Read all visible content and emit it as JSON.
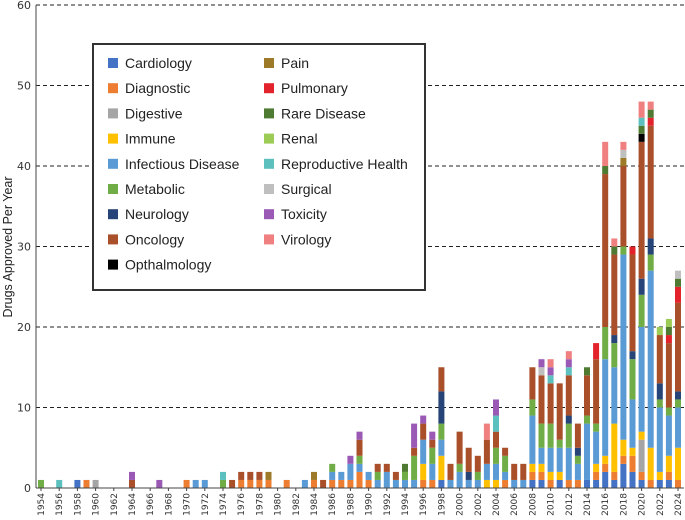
{
  "chart_data": {
    "type": "bar",
    "stacked": true,
    "title": "",
    "xlabel": "",
    "ylabel": "Drugs Approved Per Year",
    "ylim": [
      0,
      60
    ],
    "yticks": [
      0,
      10,
      20,
      30,
      40,
      50,
      60
    ],
    "grid": "horizontal dashed",
    "legend_position": "top-left",
    "x_tick_labels": [
      "1954",
      "1956",
      "1958",
      "1960",
      "1962",
      "1964",
      "1966",
      "1968",
      "1970",
      "1972",
      "1974",
      "1976",
      "1978",
      "1980",
      "1982",
      "1984",
      "1986",
      "1988",
      "1990",
      "1992",
      "1994",
      "1996",
      "1998",
      "2000",
      "2002",
      "2004",
      "2006",
      "2008",
      "2010",
      "2012",
      "2014",
      "2016",
      "2018",
      "2020",
      "2022",
      "2024"
    ],
    "categories": [
      "1954",
      "1955",
      "1956",
      "1957",
      "1958",
      "1959",
      "1960",
      "1961",
      "1962",
      "1963",
      "1964",
      "1965",
      "1966",
      "1967",
      "1968",
      "1969",
      "1970",
      "1971",
      "1972",
      "1973",
      "1974",
      "1975",
      "1976",
      "1977",
      "1978",
      "1979",
      "1980",
      "1981",
      "1982",
      "1983",
      "1984",
      "1985",
      "1986",
      "1987",
      "1988",
      "1989",
      "1990",
      "1991",
      "1992",
      "1993",
      "1994",
      "1995",
      "1996",
      "1997",
      "1998",
      "1999",
      "2000",
      "2001",
      "2002",
      "2003",
      "2004",
      "2005",
      "2006",
      "2007",
      "2008",
      "2009",
      "2010",
      "2011",
      "2012",
      "2013",
      "2014",
      "2015",
      "2016",
      "2017",
      "2018",
      "2019",
      "2020",
      "2021",
      "2022",
      "2023",
      "2024"
    ],
    "series": [
      {
        "name": "Cardiology",
        "color": "#4472c4",
        "values": [
          0,
          0,
          0,
          0,
          1,
          0,
          0,
          0,
          0,
          0,
          0,
          0,
          0,
          0,
          0,
          0,
          0,
          0,
          0,
          0,
          0,
          0,
          0,
          0,
          0,
          0,
          0,
          0,
          0,
          0,
          0,
          0,
          0,
          0,
          0,
          0,
          0,
          0,
          0,
          0,
          0,
          0,
          0,
          0,
          1,
          0,
          0,
          0,
          0,
          0,
          0,
          0,
          0,
          0,
          1,
          1,
          0,
          1,
          0,
          0,
          1,
          1,
          2,
          1,
          3,
          2,
          1,
          0,
          1,
          1,
          0
        ]
      },
      {
        "name": "Diagnostic",
        "color": "#ed7d31",
        "values": [
          0,
          0,
          0,
          0,
          0,
          1,
          0,
          0,
          0,
          0,
          0,
          0,
          0,
          0,
          0,
          0,
          1,
          0,
          0,
          0,
          0,
          0,
          1,
          1,
          1,
          1,
          0,
          1,
          0,
          0,
          1,
          0,
          1,
          1,
          1,
          2,
          1,
          0,
          0,
          0,
          0,
          0,
          1,
          1,
          0,
          0,
          0,
          0,
          0,
          0,
          0,
          1,
          0,
          0,
          1,
          1,
          1,
          0,
          1,
          1,
          0,
          1,
          1,
          1,
          1,
          2,
          1,
          1,
          0,
          1,
          1
        ]
      },
      {
        "name": "Digestive",
        "color": "#a5a5a5",
        "values": [
          0,
          0,
          0,
          0,
          0,
          0,
          1,
          0,
          0,
          0,
          0,
          0,
          0,
          0,
          0,
          0,
          0,
          0,
          0,
          0,
          0,
          0,
          0,
          0,
          0,
          0,
          0,
          0,
          0,
          0,
          0,
          0,
          0,
          0,
          0,
          0,
          0,
          0,
          0,
          0,
          0,
          0,
          0,
          0,
          0,
          0,
          0,
          0,
          0,
          0,
          0,
          0,
          0,
          0,
          0,
          0,
          0,
          0,
          0,
          0,
          0,
          0,
          0,
          0,
          0,
          0,
          4,
          0,
          0,
          0,
          0
        ]
      },
      {
        "name": "Immune",
        "color": "#ffc000",
        "values": [
          0,
          0,
          0,
          0,
          0,
          0,
          0,
          0,
          0,
          0,
          0,
          0,
          0,
          0,
          0,
          0,
          0,
          0,
          0,
          0,
          0,
          0,
          0,
          0,
          0,
          0,
          0,
          0,
          0,
          0,
          0,
          0,
          0,
          0,
          0,
          0,
          0,
          0,
          0,
          0,
          0,
          0,
          2,
          0,
          3,
          0,
          0,
          0,
          0,
          1,
          1,
          0,
          0,
          0,
          1,
          1,
          1,
          1,
          0,
          0,
          0,
          1,
          1,
          6,
          2,
          1,
          1,
          4,
          1,
          2,
          4
        ]
      },
      {
        "name": "Infectious Disease",
        "color": "#5b9bd5",
        "values": [
          0,
          0,
          0,
          0,
          0,
          0,
          0,
          0,
          0,
          0,
          0,
          0,
          0,
          0,
          0,
          0,
          0,
          1,
          1,
          0,
          0,
          0,
          0,
          0,
          0,
          0,
          0,
          0,
          0,
          1,
          0,
          0,
          1,
          1,
          2,
          1,
          1,
          1,
          2,
          1,
          1,
          1,
          3,
          2,
          2,
          1,
          2,
          1,
          1,
          2,
          2,
          1,
          1,
          1,
          6,
          2,
          3,
          3,
          4,
          2,
          7,
          4,
          12,
          7,
          23,
          6,
          13,
          22,
          8,
          5,
          5
        ]
      },
      {
        "name": "Metabolic",
        "color": "#70ad47",
        "values": [
          1,
          0,
          0,
          0,
          0,
          0,
          0,
          0,
          0,
          0,
          0,
          0,
          0,
          0,
          0,
          0,
          0,
          0,
          0,
          0,
          1,
          0,
          0,
          0,
          0,
          0,
          0,
          0,
          0,
          0,
          0,
          0,
          1,
          0,
          0,
          1,
          0,
          1,
          0,
          0,
          1,
          3,
          0,
          2,
          2,
          0,
          1,
          0,
          1,
          0,
          2,
          2,
          0,
          0,
          2,
          3,
          3,
          1,
          3,
          1,
          1,
          1,
          4,
          3,
          1,
          5,
          4,
          2,
          1,
          1,
          1
        ]
      },
      {
        "name": "Neurology",
        "color": "#264478",
        "values": [
          0,
          0,
          0,
          0,
          0,
          0,
          0,
          0,
          0,
          0,
          0,
          0,
          0,
          0,
          0,
          0,
          0,
          0,
          0,
          0,
          0,
          0,
          0,
          0,
          0,
          0,
          0,
          0,
          0,
          0,
          0,
          0,
          0,
          0,
          0,
          0,
          0,
          0,
          0,
          0,
          0,
          0,
          0,
          0,
          4,
          0,
          0,
          1,
          0,
          0,
          0,
          0,
          0,
          0,
          0,
          0,
          0,
          0,
          1,
          1,
          0,
          0,
          0,
          1,
          0,
          1,
          2,
          2,
          2,
          0,
          1
        ]
      },
      {
        "name": "Oncology",
        "color": "#a9502b",
        "values": [
          0,
          0,
          0,
          0,
          0,
          0,
          0,
          0,
          0,
          0,
          1,
          0,
          0,
          0,
          0,
          0,
          0,
          0,
          0,
          0,
          0,
          1,
          1,
          1,
          1,
          0,
          0,
          0,
          0,
          0,
          0,
          1,
          0,
          0,
          0,
          2,
          0,
          1,
          1,
          1,
          0,
          1,
          2,
          1,
          3,
          2,
          4,
          3,
          2,
          3,
          2,
          1,
          2,
          2,
          4,
          6,
          5,
          7,
          5,
          3,
          5,
          8,
          19,
          10,
          10,
          12,
          17,
          14,
          6,
          8,
          11
        ]
      },
      {
        "name": "Opthalmology",
        "color": "#000000",
        "values": [
          0,
          0,
          0,
          0,
          0,
          0,
          0,
          0,
          0,
          0,
          0,
          0,
          0,
          0,
          0,
          0,
          0,
          0,
          0,
          0,
          0,
          0,
          0,
          0,
          0,
          0,
          0,
          0,
          0,
          0,
          0,
          0,
          0,
          0,
          0,
          0,
          0,
          0,
          0,
          0,
          0,
          0,
          0,
          0,
          0,
          0,
          0,
          0,
          0,
          0,
          0,
          0,
          0,
          0,
          0,
          0,
          0,
          0,
          0,
          0,
          0,
          0,
          0,
          0,
          0,
          0,
          1,
          0,
          0,
          0,
          0
        ]
      },
      {
        "name": "Pain",
        "color": "#9c7a27",
        "values": [
          0,
          0,
          0,
          0,
          0,
          0,
          0,
          0,
          0,
          0,
          0,
          0,
          0,
          0,
          0,
          0,
          0,
          0,
          0,
          0,
          0,
          0,
          0,
          0,
          0,
          1,
          0,
          0,
          0,
          0,
          1,
          0,
          0,
          0,
          0,
          0,
          0,
          0,
          0,
          0,
          0,
          0,
          0,
          0,
          0,
          0,
          0,
          0,
          0,
          0,
          0,
          0,
          0,
          0,
          0,
          0,
          0,
          0,
          0,
          0,
          0,
          0,
          0,
          0,
          1,
          0,
          0,
          0,
          0,
          0,
          0
        ]
      },
      {
        "name": "Pulmonary",
        "color": "#e2232b",
        "values": [
          0,
          0,
          0,
          0,
          0,
          0,
          0,
          0,
          0,
          0,
          0,
          0,
          0,
          0,
          0,
          0,
          0,
          0,
          0,
          0,
          0,
          0,
          0,
          0,
          0,
          0,
          0,
          0,
          0,
          0,
          0,
          0,
          0,
          0,
          0,
          0,
          0,
          0,
          0,
          0,
          0,
          0,
          0,
          0,
          0,
          0,
          0,
          0,
          0,
          0,
          0,
          0,
          0,
          0,
          0,
          0,
          0,
          0,
          0,
          0,
          0,
          2,
          0,
          0,
          0,
          1,
          0,
          1,
          0,
          1,
          2
        ]
      },
      {
        "name": "Rare Disease",
        "color": "#4e7a32",
        "values": [
          0,
          0,
          0,
          0,
          0,
          0,
          0,
          0,
          0,
          0,
          0,
          0,
          0,
          0,
          0,
          0,
          0,
          0,
          0,
          0,
          0,
          0,
          0,
          0,
          0,
          0,
          0,
          0,
          0,
          0,
          0,
          0,
          0,
          0,
          0,
          0,
          0,
          0,
          0,
          0,
          1,
          0,
          0,
          0,
          0,
          0,
          0,
          0,
          0,
          0,
          0,
          0,
          0,
          0,
          0,
          0,
          0,
          0,
          0,
          0,
          1,
          0,
          1,
          1,
          0,
          0,
          1,
          1,
          0,
          1,
          1
        ]
      },
      {
        "name": "Renal",
        "color": "#9ccc55",
        "values": [
          0,
          0,
          0,
          0,
          0,
          0,
          0,
          0,
          0,
          0,
          0,
          0,
          0,
          0,
          0,
          0,
          0,
          0,
          0,
          0,
          0,
          0,
          0,
          0,
          0,
          0,
          0,
          0,
          0,
          0,
          0,
          0,
          0,
          0,
          0,
          0,
          0,
          0,
          0,
          0,
          0,
          0,
          0,
          0,
          0,
          0,
          0,
          0,
          0,
          0,
          0,
          0,
          0,
          0,
          0,
          0,
          0,
          0,
          0,
          0,
          0,
          0,
          0,
          0,
          0,
          0,
          0,
          0,
          1,
          1,
          0
        ]
      },
      {
        "name": "Reproductive Health",
        "color": "#5bc0be",
        "values": [
          0,
          0,
          1,
          0,
          0,
          0,
          0,
          0,
          0,
          0,
          0,
          0,
          0,
          0,
          0,
          0,
          0,
          0,
          0,
          0,
          1,
          0,
          0,
          0,
          0,
          0,
          0,
          0,
          0,
          0,
          0,
          0,
          0,
          0,
          0,
          0,
          0,
          0,
          0,
          0,
          0,
          0,
          0,
          0,
          0,
          0,
          0,
          0,
          0,
          0,
          2,
          0,
          0,
          0,
          0,
          0,
          1,
          0,
          1,
          0,
          0,
          0,
          0,
          0,
          0,
          0,
          1,
          0,
          0,
          0,
          0
        ]
      },
      {
        "name": "Surgical",
        "color": "#bfbfbf",
        "values": [
          0,
          0,
          0,
          0,
          0,
          0,
          0,
          0,
          0,
          0,
          0,
          0,
          0,
          0,
          0,
          0,
          0,
          0,
          0,
          0,
          0,
          0,
          0,
          0,
          0,
          0,
          0,
          0,
          0,
          0,
          0,
          0,
          0,
          0,
          0,
          0,
          0,
          0,
          0,
          0,
          0,
          0,
          0,
          0,
          0,
          0,
          0,
          0,
          0,
          0,
          0,
          0,
          0,
          0,
          0,
          1,
          0,
          0,
          0,
          0,
          0,
          0,
          0,
          0,
          1,
          0,
          0,
          0,
          0,
          0,
          1
        ]
      },
      {
        "name": "Toxicity",
        "color": "#9b59b6",
        "values": [
          0,
          0,
          0,
          0,
          0,
          0,
          0,
          0,
          0,
          0,
          1,
          0,
          0,
          1,
          0,
          0,
          0,
          0,
          0,
          0,
          0,
          0,
          0,
          0,
          0,
          0,
          0,
          0,
          0,
          0,
          0,
          0,
          0,
          0,
          1,
          1,
          0,
          0,
          0,
          0,
          0,
          3,
          1,
          1,
          0,
          0,
          0,
          0,
          0,
          0,
          2,
          0,
          0,
          0,
          0,
          1,
          1,
          0,
          1,
          0,
          0,
          0,
          0,
          0,
          0,
          0,
          0,
          0,
          0,
          0,
          0
        ]
      },
      {
        "name": "Virology",
        "color": "#f08080",
        "values": [
          0,
          0,
          0,
          0,
          0,
          0,
          0,
          0,
          0,
          0,
          0,
          0,
          0,
          0,
          0,
          0,
          0,
          0,
          0,
          0,
          0,
          0,
          0,
          0,
          0,
          0,
          0,
          0,
          0,
          0,
          0,
          0,
          0,
          0,
          0,
          0,
          0,
          0,
          0,
          0,
          0,
          0,
          0,
          0,
          0,
          0,
          0,
          0,
          0,
          2,
          0,
          0,
          0,
          0,
          0,
          0,
          1,
          0,
          1,
          0,
          0,
          0,
          3,
          1,
          1,
          0,
          2,
          1,
          0,
          0,
          0
        ]
      }
    ]
  }
}
